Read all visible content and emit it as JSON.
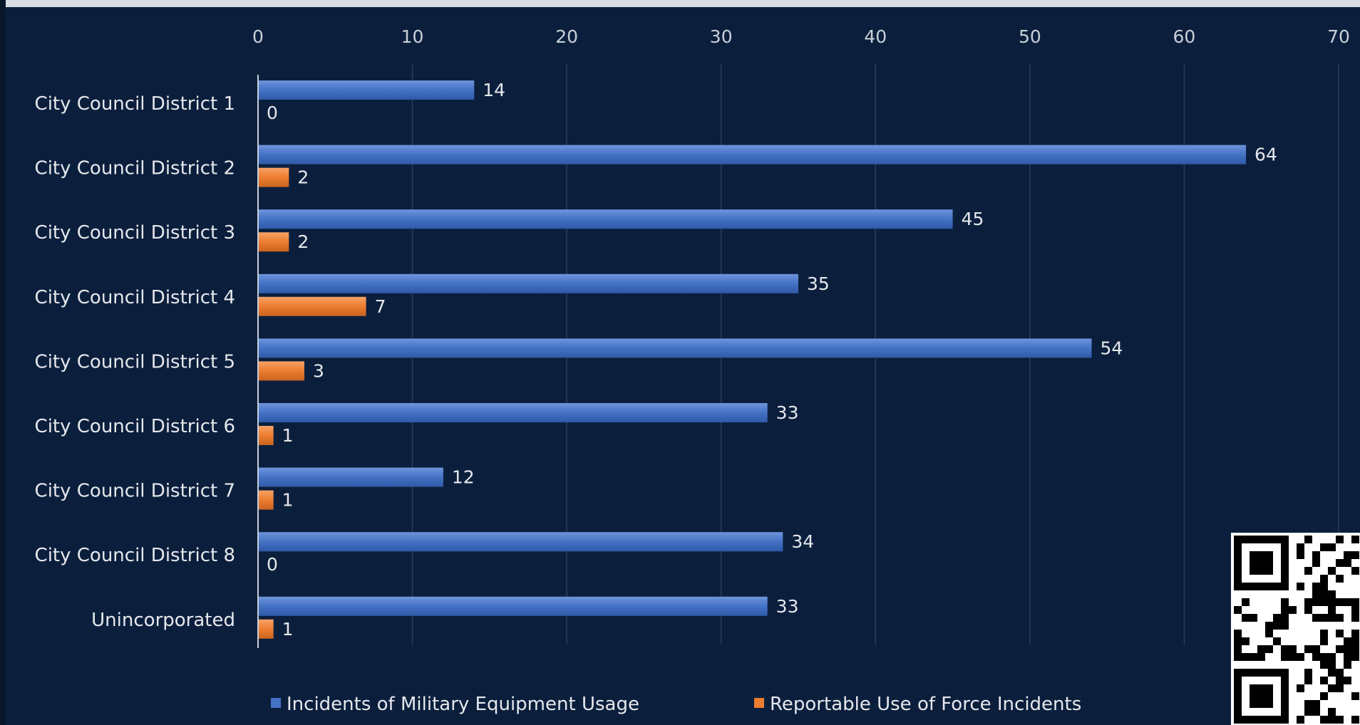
{
  "chart_data": {
    "type": "bar",
    "orientation": "horizontal",
    "categories": [
      "City Council District 1",
      "City Council District 2",
      "City Council District 3",
      "City Council District 4",
      "City Council District 5",
      "City Council District 6",
      "City Council District 7",
      "City Council District 8",
      "Unincorporated"
    ],
    "series": [
      {
        "name": "Incidents of Military Equipment Usage",
        "color": "#4472c4",
        "values": [
          14,
          64,
          45,
          35,
          54,
          33,
          12,
          34,
          33
        ]
      },
      {
        "name": "Reportable Use of Force Incidents",
        "color": "#ed7d31",
        "values": [
          0,
          2,
          2,
          7,
          3,
          1,
          1,
          0,
          1
        ]
      }
    ],
    "xlim": [
      0,
      70
    ],
    "x_ticks": [
      "0",
      "10",
      "20",
      "30",
      "40",
      "50",
      "60",
      "70"
    ],
    "x_axis_position": "top",
    "grid": true,
    "legend_position": "bottom",
    "background_color": "#0b1f3d"
  }
}
